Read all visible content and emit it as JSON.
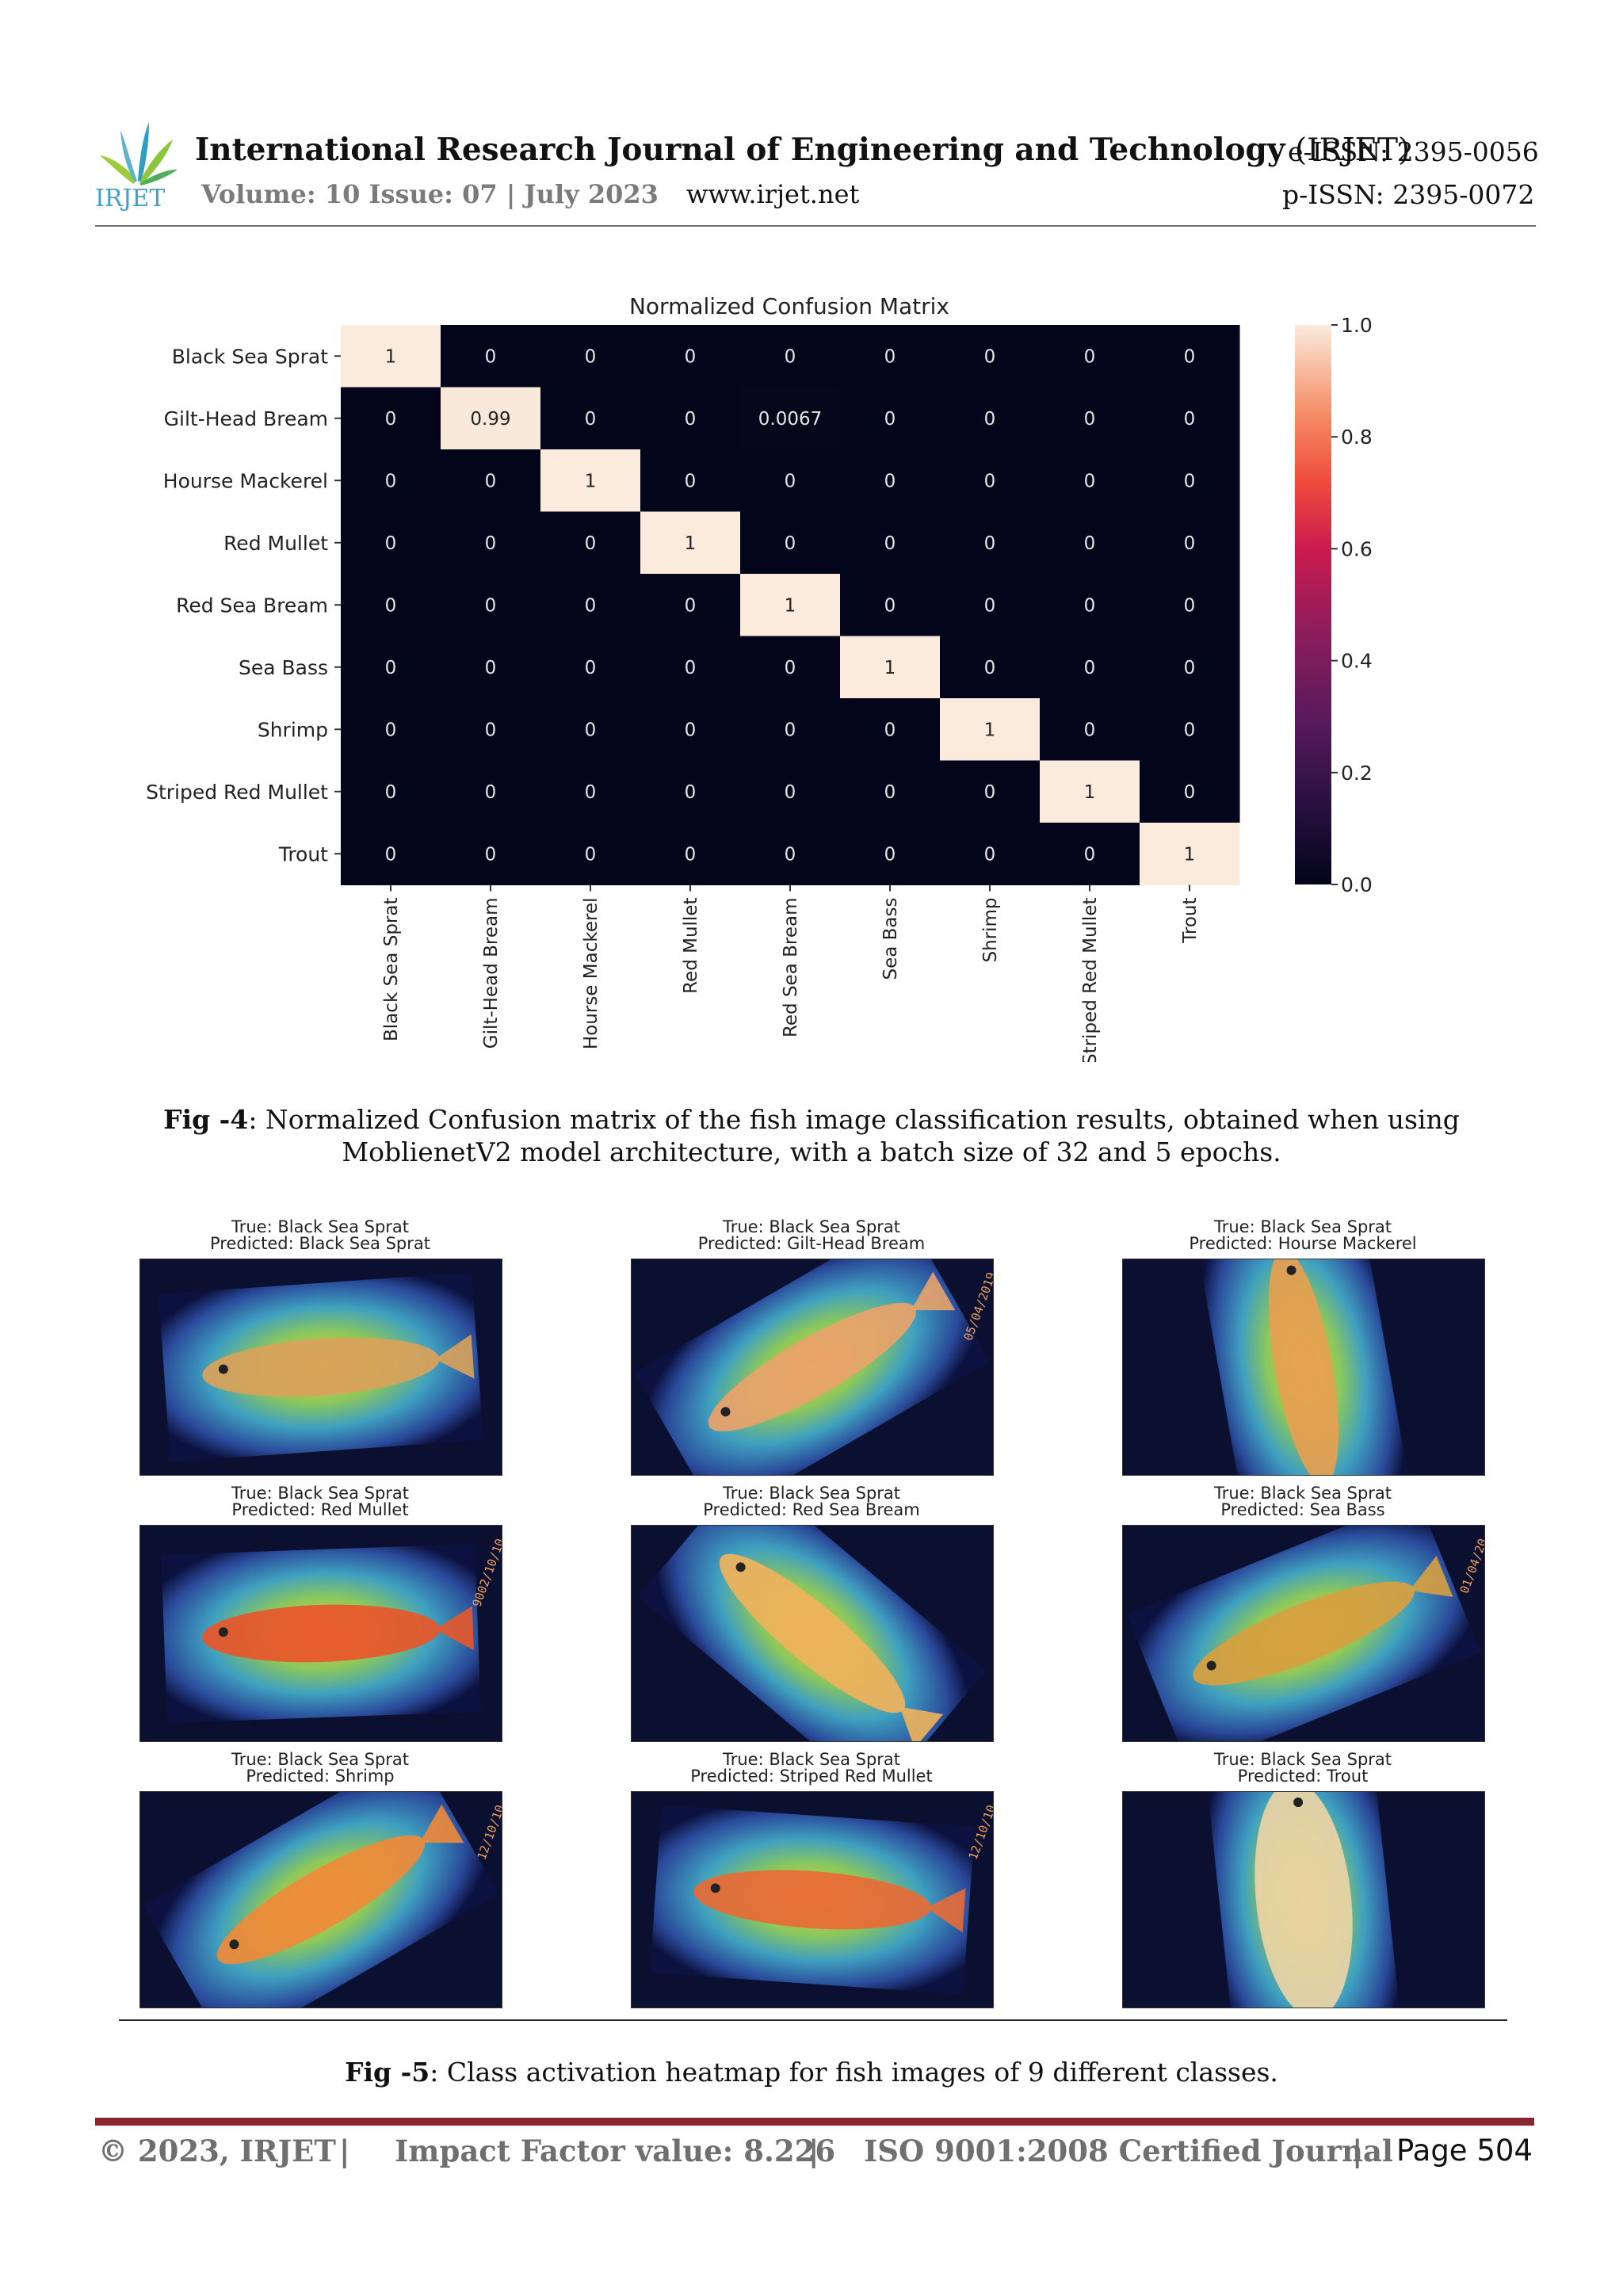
{
  "header": {
    "logo_text": "IRJET",
    "journal_name": "International Research Journal of Engineering and Technology",
    "journal_abbr": "(IRJET)",
    "eissn": "e-ISSN: 2395-0056",
    "volume": "Volume: 10 Issue: 07 | July 2023",
    "website": "www.irjet.net",
    "pissn": "p-ISSN: 2395-0072"
  },
  "chart_data": {
    "type": "heatmap",
    "title": "Normalized Confusion Matrix",
    "rows": [
      "Black Sea Sprat",
      "Gilt-Head Bream",
      "Hourse Mackerel",
      "Red Mullet",
      "Red Sea Bream",
      "Sea Bass",
      "Shrimp",
      "Striped Red Mullet",
      "Trout"
    ],
    "columns": [
      "Black Sea Sprat",
      "Gilt-Head Bream",
      "Hourse Mackerel",
      "Red Mullet",
      "Red Sea Bream",
      "Sea Bass",
      "Shrimp",
      "Striped Red Mullet",
      "Trout"
    ],
    "values": [
      [
        1,
        0,
        0,
        0,
        0,
        0,
        0,
        0,
        0
      ],
      [
        0,
        0.99,
        0,
        0,
        0.0067,
        0,
        0,
        0,
        0
      ],
      [
        0,
        0,
        1,
        0,
        0,
        0,
        0,
        0,
        0
      ],
      [
        0,
        0,
        0,
        1,
        0,
        0,
        0,
        0,
        0
      ],
      [
        0,
        0,
        0,
        0,
        1,
        0,
        0,
        0,
        0
      ],
      [
        0,
        0,
        0,
        0,
        0,
        1,
        0,
        0,
        0
      ],
      [
        0,
        0,
        0,
        0,
        0,
        0,
        1,
        0,
        0
      ],
      [
        0,
        0,
        0,
        0,
        0,
        0,
        0,
        1,
        0
      ],
      [
        0,
        0,
        0,
        0,
        0,
        0,
        0,
        0,
        1
      ]
    ],
    "cell_labels": [
      [
        "1",
        "0",
        "0",
        "0",
        "0",
        "0",
        "0",
        "0",
        "0"
      ],
      [
        "0",
        "0.99",
        "0",
        "0",
        "0.0067",
        "0",
        "0",
        "0",
        "0"
      ],
      [
        "0",
        "0",
        "1",
        "0",
        "0",
        "0",
        "0",
        "0",
        "0"
      ],
      [
        "0",
        "0",
        "0",
        "1",
        "0",
        "0",
        "0",
        "0",
        "0"
      ],
      [
        "0",
        "0",
        "0",
        "0",
        "1",
        "0",
        "0",
        "0",
        "0"
      ],
      [
        "0",
        "0",
        "0",
        "0",
        "0",
        "1",
        "0",
        "0",
        "0"
      ],
      [
        "0",
        "0",
        "0",
        "0",
        "0",
        "0",
        "1",
        "0",
        "0"
      ],
      [
        "0",
        "0",
        "0",
        "0",
        "0",
        "0",
        "0",
        "1",
        "0"
      ],
      [
        "0",
        "0",
        "0",
        "0",
        "0",
        "0",
        "0",
        "0",
        "1"
      ]
    ],
    "colorbar": {
      "range": [
        0,
        1
      ],
      "ticks": [
        "0.0",
        "0.2",
        "0.4",
        "0.6",
        "0.8",
        "1.0"
      ],
      "colormap": "rocket"
    },
    "grid": false
  },
  "fig4_caption": {
    "label": "Fig -4",
    "text": ": Normalized Confusion matrix of the fish image classification results, obtained when using MoblienetV2 model architecture, with a batch size of 32 and 5 epochs."
  },
  "heatmaps": [
    {
      "true": "True: Black Sea Sprat",
      "pred": "Predicted: Black Sea Sprat",
      "stamp": ""
    },
    {
      "true": "True: Black Sea Sprat",
      "pred": "Predicted: Gilt-Head Bream",
      "stamp": "05/04/2019"
    },
    {
      "true": "True: Black Sea Sprat",
      "pred": "Predicted: Hourse Mackerel",
      "stamp": ""
    },
    {
      "true": "True: Black Sea Sprat",
      "pred": "Predicted: Red Mullet",
      "stamp": "9002/10/10"
    },
    {
      "true": "True: Black Sea Sprat",
      "pred": "Predicted: Red Sea Bream",
      "stamp": ""
    },
    {
      "true": "True: Black Sea Sprat",
      "pred": "Predicted: Sea Bass",
      "stamp": "01/04/20"
    },
    {
      "true": "True: Black Sea Sprat",
      "pred": "Predicted: Shrimp",
      "stamp": "12/10/10"
    },
    {
      "true": "True: Black Sea Sprat",
      "pred": "Predicted: Striped Red Mullet",
      "stamp": "12/10/10"
    },
    {
      "true": "True: Black Sea Sprat",
      "pred": "Predicted: Trout",
      "stamp": ""
    }
  ],
  "fig5_caption": {
    "label": "Fig -5",
    "text": ": Class activation heatmap for fish images of 9 different classes."
  },
  "footer": {
    "copyright": "© 2023, IRJET",
    "sep": "|",
    "impact": "Impact Factor value: 8.226",
    "iso": "ISO 9001:2008 Certified Journal",
    "page_label": "Page",
    "page_number": "504"
  },
  "colors": {
    "accent": "#8a2630",
    "matrix_low": "#03051a",
    "matrix_high": "#faebdd"
  }
}
